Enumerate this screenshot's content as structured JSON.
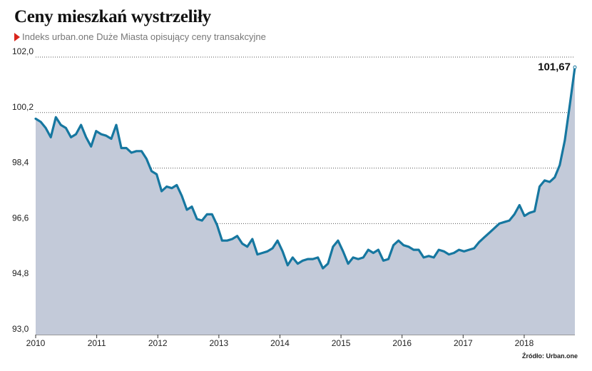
{
  "header": {
    "title": "Ceny mieszkań wystrzeliły",
    "subtitle": "Indeks urban.one Duże Miasta opisujący ceny transakcyjne"
  },
  "source": "Źródło: Urban.one",
  "colors": {
    "line": "#1677a0",
    "area": "#c3cad9",
    "grid": "#555555",
    "marker": "#d9251c"
  },
  "chart_data": {
    "type": "area",
    "title": "Ceny mieszkań wystrzeliły",
    "subtitle": "Indeks urban.one Duże Miasta opisujący ceny transakcyjne",
    "xlabel": "",
    "ylabel": "",
    "ylim": [
      93.0,
      102.0
    ],
    "xlim": [
      2010.0,
      2018.83
    ],
    "y_ticks": [
      "93,0",
      "94,8",
      "96,6",
      "98,4",
      "100,2",
      "102,0"
    ],
    "y_tick_values": [
      93.0,
      94.8,
      96.6,
      98.4,
      100.2,
      102.0
    ],
    "x_ticks": [
      "2010",
      "2011",
      "2012",
      "2013",
      "2014",
      "2015",
      "2016",
      "2017",
      "2018"
    ],
    "x_tick_values": [
      2010,
      2011,
      2012,
      2013,
      2014,
      2015,
      2016,
      2017,
      2018
    ],
    "grid": "horizontal dotted",
    "last_value_label": "101,67",
    "series": [
      {
        "values": [
          100.0,
          99.9,
          99.7,
          99.4,
          100.05,
          99.8,
          99.7,
          99.4,
          99.5,
          99.8,
          99.4,
          99.1,
          99.6,
          99.5,
          99.45,
          99.35,
          99.8,
          99.05,
          99.05,
          98.9,
          98.95,
          98.95,
          98.7,
          98.3,
          98.2,
          97.65,
          97.8,
          97.75,
          97.85,
          97.5,
          97.05,
          97.15,
          96.75,
          96.7,
          96.9,
          96.9,
          96.55,
          96.05,
          96.05,
          96.1,
          96.2,
          95.95,
          95.85,
          96.1,
          95.6,
          95.65,
          95.7,
          95.8,
          96.05,
          95.7,
          95.25,
          95.5,
          95.3,
          95.4,
          95.45,
          95.45,
          95.5,
          95.15,
          95.3,
          95.85,
          96.05,
          95.7,
          95.3,
          95.5,
          95.45,
          95.5,
          95.75,
          95.65,
          95.75,
          95.4,
          95.45,
          95.9,
          96.05,
          95.9,
          95.85,
          95.75,
          95.75,
          95.5,
          95.55,
          95.5,
          95.75,
          95.7,
          95.6,
          95.65,
          95.75,
          95.7,
          95.75,
          95.8,
          96.0,
          96.15,
          96.3,
          96.45,
          96.6,
          96.65,
          96.7,
          96.9,
          97.2,
          96.85,
          96.95,
          97.0,
          97.8,
          98.0,
          97.95,
          98.1,
          98.5,
          99.3,
          100.45,
          101.67
        ]
      }
    ]
  }
}
